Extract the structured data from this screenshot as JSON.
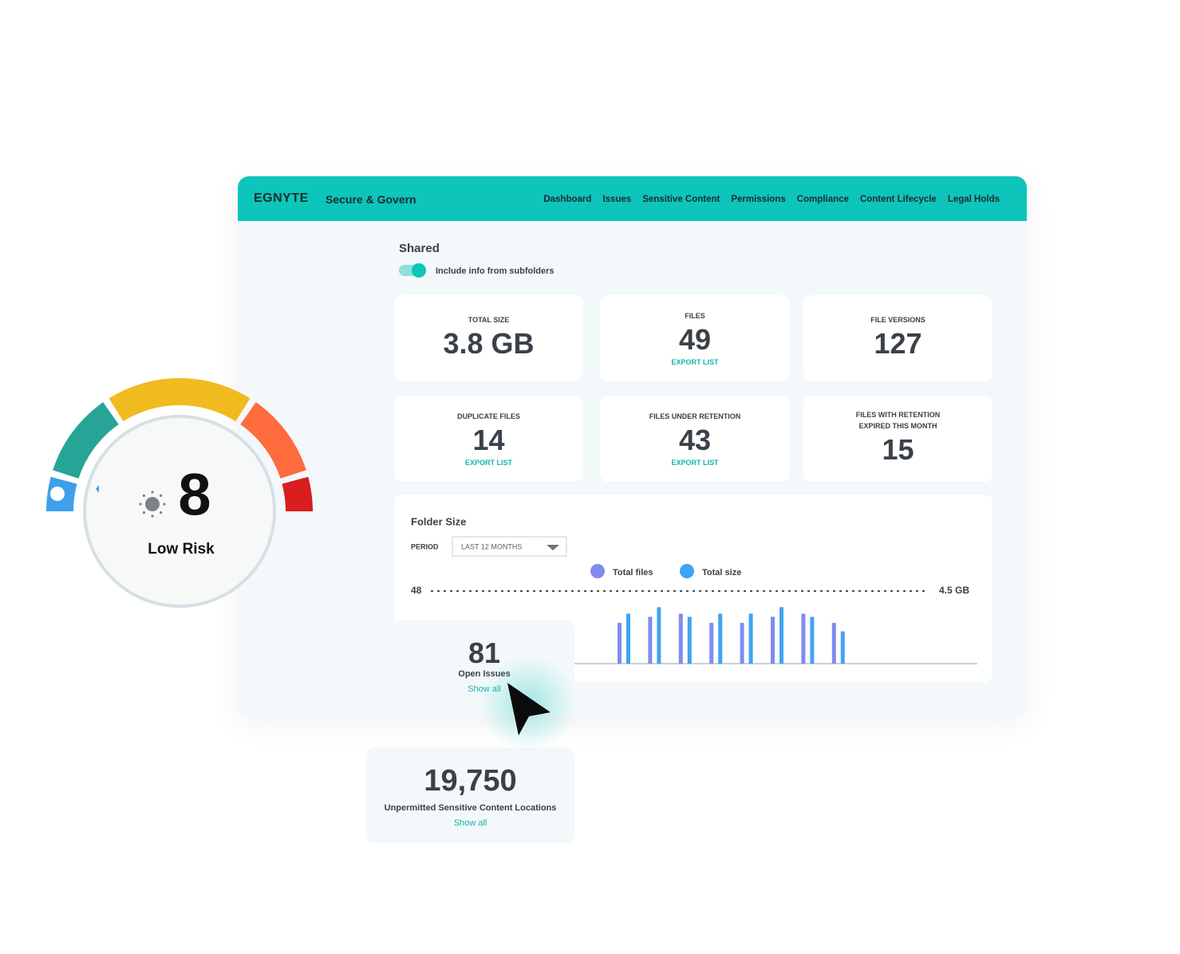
{
  "gauge": {
    "score": "8",
    "label": "Low Risk"
  },
  "header": {
    "logo": "EGNYTE",
    "product": "Secure & Govern",
    "nav": [
      "Dashboard",
      "Issues",
      "Sensitive Content",
      "Permissions",
      "Compliance",
      "Content Lifecycle",
      "Legal Holds"
    ]
  },
  "section": {
    "title": "Shared",
    "toggle_label": "Include info from subfolders"
  },
  "stats": [
    {
      "label": "TOTAL SIZE",
      "value": "3.8 GB"
    },
    {
      "label": "FILES",
      "value": "49",
      "link": "EXPORT LIST"
    },
    {
      "label": "FILE VERSIONS",
      "value": "127"
    },
    {
      "label": "DUPLICATE FILES",
      "value": "14",
      "link": "EXPORT LIST"
    },
    {
      "label": "FILES UNDER RETENTION",
      "value": "43",
      "link": "EXPORT LIST"
    },
    {
      "label": "FILES WITH RETENTION EXPIRED THIS MONTH",
      "value": "15"
    }
  ],
  "chart_data": {
    "type": "bar",
    "title": "Folder Size",
    "period_label": "PERIOD",
    "period": "LAST 12 MONTHS",
    "categories": [
      null,
      null,
      null,
      null,
      null,
      null,
      null,
      null
    ],
    "series": [
      {
        "name": "Total files",
        "color": "#7f8ced",
        "values": [
          27,
          31,
          33,
          27,
          27,
          31,
          33,
          27
        ]
      },
      {
        "name": "Total size",
        "color": "#3fa4f3",
        "axis": "y2",
        "values": [
          3.1,
          3.5,
          2.9,
          3.1,
          3.1,
          3.5,
          2.9,
          2.0
        ]
      }
    ],
    "ylim": [
      0,
      48
    ],
    "yticks": [
      48
    ],
    "y2lim": [
      0,
      4.5
    ],
    "y2ticks": [
      {
        "value": 4.5,
        "label": "4.5 GB"
      }
    ],
    "grid": true
  },
  "issues": {
    "value": "81",
    "label": "Open Issues",
    "link": "Show all"
  },
  "sensitive": {
    "value": "19,750",
    "label": "Unpermitted Sensitive Content Locations",
    "link": "Show all"
  }
}
